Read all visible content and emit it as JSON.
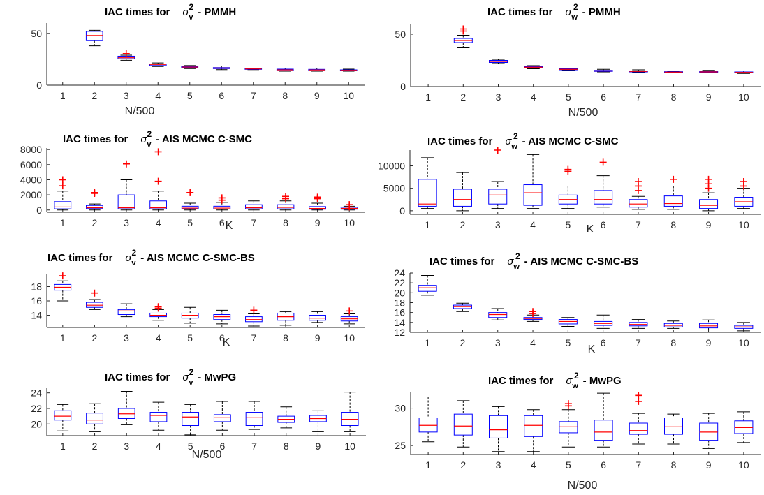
{
  "figure": {
    "title_prefix": "IAC times for"
  },
  "chart_data": [
    {
      "type": "boxplot",
      "title": "IAC times for σ_v^2 - PMMH",
      "title_var": "v",
      "title_method": "- PMMH",
      "xlabel": "N/500",
      "categories": [
        "1",
        "2",
        "3",
        "4",
        "5",
        "6",
        "7",
        "8",
        "9",
        "10"
      ],
      "yticks": [
        0,
        50
      ],
      "ylim": [
        0,
        60
      ],
      "boxes": [
        null,
        {
          "min": 38,
          "q1": 43,
          "median": 48,
          "q3": 52,
          "max": 53,
          "outliers": []
        },
        {
          "min": 24,
          "q1": 25.5,
          "median": 26.5,
          "q3": 28,
          "max": 29,
          "outliers": [
            30.5
          ]
        },
        {
          "min": 18,
          "q1": 19,
          "median": 20,
          "q3": 20.5,
          "max": 21.5,
          "outliers": []
        },
        {
          "min": 16,
          "q1": 17,
          "median": 17.5,
          "q3": 18,
          "max": 19,
          "outliers": []
        },
        {
          "min": 15,
          "q1": 16,
          "median": 16.5,
          "q3": 17,
          "max": 18.5,
          "outliers": []
        },
        {
          "min": 15,
          "q1": 15.3,
          "median": 15.7,
          "q3": 16,
          "max": 16.5,
          "outliers": []
        },
        {
          "min": 13.5,
          "q1": 14,
          "median": 14.8,
          "q3": 15.5,
          "max": 16.5,
          "outliers": []
        },
        {
          "min": 13.5,
          "q1": 14,
          "median": 14.7,
          "q3": 15.3,
          "max": 16.5,
          "outliers": []
        },
        {
          "min": 13.5,
          "q1": 14,
          "median": 14.3,
          "q3": 14.8,
          "max": 15.5,
          "outliers": []
        }
      ]
    },
    {
      "type": "boxplot",
      "title": "IAC times for σ_w^2 - PMMH",
      "title_var": "w",
      "title_method": "- PMMH",
      "xlabel": "N/500",
      "categories": [
        "1",
        "2",
        "3",
        "4",
        "5",
        "6",
        "7",
        "8",
        "9",
        "10"
      ],
      "yticks": [
        0,
        50
      ],
      "ylim": [
        0,
        60
      ],
      "boxes": [
        null,
        {
          "min": 37,
          "q1": 42,
          "median": 44,
          "q3": 46,
          "max": 49,
          "outliers": [
            53,
            55
          ]
        },
        {
          "min": 22,
          "q1": 23,
          "median": 24,
          "q3": 25,
          "max": 26,
          "outliers": []
        },
        {
          "min": 17,
          "q1": 18,
          "median": 18.5,
          "q3": 19,
          "max": 20,
          "outliers": []
        },
        {
          "min": 15.5,
          "q1": 16,
          "median": 16.5,
          "q3": 17,
          "max": 17.5,
          "outliers": []
        },
        {
          "min": 14,
          "q1": 14.5,
          "median": 15,
          "q3": 15.5,
          "max": 16.5,
          "outliers": []
        },
        {
          "min": 13.5,
          "q1": 14,
          "median": 14.5,
          "q3": 15,
          "max": 16,
          "outliers": []
        },
        {
          "min": 13,
          "q1": 13.5,
          "median": 13.8,
          "q3": 14.2,
          "max": 14.5,
          "outliers": []
        },
        {
          "min": 13,
          "q1": 13.5,
          "median": 14,
          "q3": 14.5,
          "max": 15.5,
          "outliers": []
        },
        {
          "min": 12.5,
          "q1": 13,
          "median": 13.5,
          "q3": 14,
          "max": 15,
          "outliers": []
        }
      ]
    },
    {
      "type": "boxplot",
      "title": "IAC times for σ_v^2 - AIS MCMC C-SMC",
      "title_var": "v",
      "title_method": "- AIS MCMC C-SMC",
      "xlabel": "K",
      "categories": [
        "1",
        "2",
        "3",
        "4",
        "5",
        "6",
        "7",
        "8",
        "9",
        "10"
      ],
      "yticks": [
        0,
        2000,
        4000,
        6000,
        8000
      ],
      "ylim": [
        -300,
        8200
      ],
      "boxes": [
        {
          "min": 0,
          "q1": 150,
          "median": 400,
          "q3": 1100,
          "max": 2500,
          "outliers": [
            3200,
            4000
          ]
        },
        {
          "min": 0,
          "q1": 180,
          "median": 300,
          "q3": 600,
          "max": 800,
          "outliers": [
            2200,
            2300
          ]
        },
        {
          "min": 0,
          "q1": 150,
          "median": 300,
          "q3": 2000,
          "max": 4000,
          "outliers": [
            6100
          ]
        },
        {
          "min": 0,
          "q1": 150,
          "median": 300,
          "q3": 1200,
          "max": 2500,
          "outliers": [
            3800,
            7700
          ]
        },
        {
          "min": 0,
          "q1": 150,
          "median": 250,
          "q3": 500,
          "max": 900,
          "outliers": [
            2300
          ]
        },
        {
          "min": 0,
          "q1": 120,
          "median": 250,
          "q3": 500,
          "max": 1000,
          "outliers": [
            1300,
            1600
          ]
        },
        {
          "min": 0,
          "q1": 150,
          "median": 300,
          "q3": 700,
          "max": 1200,
          "outliers": []
        },
        {
          "min": 0,
          "q1": 150,
          "median": 350,
          "q3": 700,
          "max": 1200,
          "outliers": [
            1500,
            1800
          ]
        },
        {
          "min": 0,
          "q1": 100,
          "median": 200,
          "q3": 450,
          "max": 900,
          "outliers": [
            1500,
            1700
          ]
        },
        {
          "min": 0,
          "q1": 100,
          "median": 200,
          "q3": 350,
          "max": 500,
          "outliers": [
            400,
            700
          ]
        }
      ]
    },
    {
      "type": "boxplot",
      "title": "IAC times for σ_w^2 - AIS MCMC C-SMC",
      "title_var": "w",
      "title_method": "- AIS MCMC C-SMC",
      "xlabel": "K",
      "categories": [
        "1",
        "2",
        "3",
        "4",
        "5",
        "6",
        "7",
        "8",
        "9",
        "10"
      ],
      "yticks": [
        0,
        5000,
        10000
      ],
      "ylim": [
        -800,
        13500
      ],
      "boxes": [
        {
          "min": 500,
          "q1": 1000,
          "median": 1500,
          "q3": 7000,
          "max": 11800,
          "outliers": []
        },
        {
          "min": 0,
          "q1": 1000,
          "median": 2500,
          "q3": 4800,
          "max": 8500,
          "outliers": []
        },
        {
          "min": 500,
          "q1": 1500,
          "median": 3500,
          "q3": 4800,
          "max": 6500,
          "outliers": [
            13500
          ]
        },
        {
          "min": 500,
          "q1": 1200,
          "median": 4000,
          "q3": 5800,
          "max": 12500,
          "outliers": []
        },
        {
          "min": 500,
          "q1": 1500,
          "median": 2500,
          "q3": 3500,
          "max": 5500,
          "outliers": [
            8800,
            9200
          ]
        },
        {
          "min": 800,
          "q1": 1500,
          "median": 2500,
          "q3": 4500,
          "max": 7800,
          "outliers": [
            10800
          ]
        },
        {
          "min": 300,
          "q1": 800,
          "median": 1500,
          "q3": 2500,
          "max": 3200,
          "outliers": [
            4500,
            5500,
            6500
          ]
        },
        {
          "min": 300,
          "q1": 1000,
          "median": 1600,
          "q3": 3300,
          "max": 5500,
          "outliers": [
            7000
          ]
        },
        {
          "min": 0,
          "q1": 500,
          "median": 1200,
          "q3": 2500,
          "max": 4000,
          "outliers": [
            5000,
            6000,
            7000
          ]
        },
        {
          "min": 500,
          "q1": 1000,
          "median": 2000,
          "q3": 3000,
          "max": 5000,
          "outliers": [
            5500,
            6500
          ]
        }
      ]
    },
    {
      "type": "boxplot",
      "title": "IAC times for σ_v^2 - AIS MCMC C-SMC-BS",
      "title_var": "v",
      "title_method": "- AIS MCMC C-SMC-BS",
      "xlabel": "K",
      "categories": [
        "1",
        "2",
        "3",
        "4",
        "5",
        "6",
        "7",
        "8",
        "9",
        "10"
      ],
      "yticks": [
        14,
        16,
        18
      ],
      "ylim": [
        12.3,
        19.8
      ],
      "boxes": [
        {
          "min": 16,
          "q1": 17.5,
          "median": 17.9,
          "q3": 18.3,
          "max": 18.8,
          "outliers": [
            19.5
          ]
        },
        {
          "min": 14.8,
          "q1": 15.1,
          "median": 15.4,
          "q3": 15.8,
          "max": 16.2,
          "outliers": [
            17.1
          ]
        },
        {
          "min": 13.8,
          "q1": 14.1,
          "median": 14.6,
          "q3": 14.8,
          "max": 15.6,
          "outliers": []
        },
        {
          "min": 13.3,
          "q1": 13.8,
          "median": 14.0,
          "q3": 14.3,
          "max": 14.8,
          "outliers": [
            15.0,
            15.2
          ]
        },
        {
          "min": 12.9,
          "q1": 13.6,
          "median": 14.0,
          "q3": 14.3,
          "max": 15.1,
          "outliers": []
        },
        {
          "min": 12.8,
          "q1": 13.4,
          "median": 13.8,
          "q3": 14.1,
          "max": 14.7,
          "outliers": []
        },
        {
          "min": 12.5,
          "q1": 13.1,
          "median": 13.4,
          "q3": 13.8,
          "max": 14.2,
          "outliers": [
            14.7
          ]
        },
        {
          "min": 12.6,
          "q1": 13.3,
          "median": 13.8,
          "q3": 14.3,
          "max": 14.5,
          "outliers": []
        },
        {
          "min": 13.0,
          "q1": 13.3,
          "median": 13.6,
          "q3": 14.0,
          "max": 14.5,
          "outliers": []
        },
        {
          "min": 12.8,
          "q1": 13.2,
          "median": 13.5,
          "q3": 13.8,
          "max": 14.2,
          "outliers": [
            14.6
          ]
        }
      ]
    },
    {
      "type": "boxplot",
      "title": "IAC times for σ_w^2 - AIS MCMC C-SMC-BS",
      "title_var": "w",
      "title_method": "- AIS MCMC C-SMC-BS",
      "xlabel": "K",
      "categories": [
        "1",
        "2",
        "3",
        "4",
        "5",
        "6",
        "7",
        "8",
        "9",
        "10"
      ],
      "yticks": [
        12,
        14,
        16,
        18,
        20,
        22,
        24
      ],
      "ylim": [
        12,
        24
      ],
      "boxes": [
        {
          "min": 19.5,
          "q1": 20.3,
          "median": 21.0,
          "q3": 21.5,
          "max": 23.5,
          "outliers": []
        },
        {
          "min": 16.2,
          "q1": 16.8,
          "median": 17.2,
          "q3": 17.5,
          "max": 17.9,
          "outliers": []
        },
        {
          "min": 14.5,
          "q1": 15.0,
          "median": 15.6,
          "q3": 16.0,
          "max": 16.8,
          "outliers": []
        },
        {
          "min": 14.2,
          "q1": 14.6,
          "median": 14.8,
          "q3": 15.0,
          "max": 15.5,
          "outliers": [
            15.8,
            16.2
          ]
        },
        {
          "min": 13.2,
          "q1": 13.7,
          "median": 14.2,
          "q3": 14.6,
          "max": 15.0,
          "outliers": []
        },
        {
          "min": 12.8,
          "q1": 13.4,
          "median": 13.8,
          "q3": 14.2,
          "max": 15.5,
          "outliers": []
        },
        {
          "min": 12.8,
          "q1": 13.3,
          "median": 13.6,
          "q3": 14.0,
          "max": 14.6,
          "outliers": []
        },
        {
          "min": 12.8,
          "q1": 13.1,
          "median": 13.4,
          "q3": 13.8,
          "max": 14.3,
          "outliers": []
        },
        {
          "min": 12.5,
          "q1": 12.9,
          "median": 13.3,
          "q3": 13.8,
          "max": 14.5,
          "outliers": []
        },
        {
          "min": 12.3,
          "q1": 12.8,
          "median": 13.1,
          "q3": 13.4,
          "max": 14.0,
          "outliers": []
        }
      ]
    },
    {
      "type": "boxplot",
      "title": "IAC times for σ_v^2 - MwPG",
      "title_var": "v",
      "title_method": "- MwPG",
      "xlabel": "N/500",
      "categories": [
        "1",
        "2",
        "3",
        "4",
        "5",
        "6",
        "7",
        "8",
        "9",
        "10"
      ],
      "yticks": [
        20,
        22,
        24
      ],
      "ylim": [
        18.5,
        24.6
      ],
      "boxes": [
        {
          "min": 19.1,
          "q1": 20.5,
          "median": 21.0,
          "q3": 21.7,
          "max": 22.5,
          "outliers": []
        },
        {
          "min": 19.0,
          "q1": 20.0,
          "median": 20.5,
          "q3": 21.4,
          "max": 22.6,
          "outliers": []
        },
        {
          "min": 19.9,
          "q1": 20.7,
          "median": 21.3,
          "q3": 22.0,
          "max": 24.2,
          "outliers": []
        },
        {
          "min": 19.2,
          "q1": 20.3,
          "median": 21.1,
          "q3": 21.5,
          "max": 22.8,
          "outliers": []
        },
        {
          "min": 18.6,
          "q1": 19.8,
          "median": 20.9,
          "q3": 21.5,
          "max": 22.5,
          "outliers": []
        },
        {
          "min": 19.2,
          "q1": 20.3,
          "median": 20.8,
          "q3": 21.2,
          "max": 22.9,
          "outliers": []
        },
        {
          "min": 19.3,
          "q1": 19.8,
          "median": 20.8,
          "q3": 21.5,
          "max": 22.9,
          "outliers": []
        },
        {
          "min": 19.5,
          "q1": 20.2,
          "median": 20.6,
          "q3": 21.0,
          "max": 22.2,
          "outliers": []
        },
        {
          "min": 19.0,
          "q1": 20.3,
          "median": 20.7,
          "q3": 21.1,
          "max": 21.7,
          "outliers": []
        },
        {
          "min": 19.0,
          "q1": 19.8,
          "median": 20.6,
          "q3": 21.5,
          "max": 24.1,
          "outliers": []
        }
      ]
    },
    {
      "type": "boxplot",
      "title": "IAC times for σ_w^2 - MwPG",
      "title_var": "w",
      "title_method": "- MwPG",
      "xlabel": "N/500",
      "categories": [
        "1",
        "2",
        "3",
        "4",
        "5",
        "6",
        "7",
        "8",
        "9",
        "10"
      ],
      "yticks": [
        25,
        30
      ],
      "ylim": [
        23.8,
        32.2
      ],
      "boxes": [
        {
          "min": 25.5,
          "q1": 26.8,
          "median": 27.7,
          "q3": 28.7,
          "max": 31.5,
          "outliers": []
        },
        {
          "min": 24.8,
          "q1": 26.4,
          "median": 27.6,
          "q3": 29.2,
          "max": 31.0,
          "outliers": []
        },
        {
          "min": 24.2,
          "q1": 26.0,
          "median": 27.1,
          "q3": 29.0,
          "max": 30.2,
          "outliers": []
        },
        {
          "min": 24.2,
          "q1": 26.2,
          "median": 27.7,
          "q3": 29.0,
          "max": 29.8,
          "outliers": []
        },
        {
          "min": 24.8,
          "q1": 26.7,
          "median": 27.5,
          "q3": 28.2,
          "max": 29.8,
          "outliers": [
            30.3,
            30.6
          ]
        },
        {
          "min": 24.8,
          "q1": 25.7,
          "median": 26.8,
          "q3": 28.4,
          "max": 32.0,
          "outliers": []
        },
        {
          "min": 25.2,
          "q1": 26.5,
          "median": 27.0,
          "q3": 28.0,
          "max": 29.3,
          "outliers": [
            30.9,
            31.7
          ]
        },
        {
          "min": 25.2,
          "q1": 26.5,
          "median": 27.5,
          "q3": 28.7,
          "max": 29.2,
          "outliers": []
        },
        {
          "min": 24.6,
          "q1": 25.7,
          "median": 26.8,
          "q3": 28.0,
          "max": 29.3,
          "outliers": []
        },
        {
          "min": 25.4,
          "q1": 26.6,
          "median": 27.4,
          "q3": 28.3,
          "max": 29.5,
          "outliers": []
        }
      ]
    }
  ]
}
